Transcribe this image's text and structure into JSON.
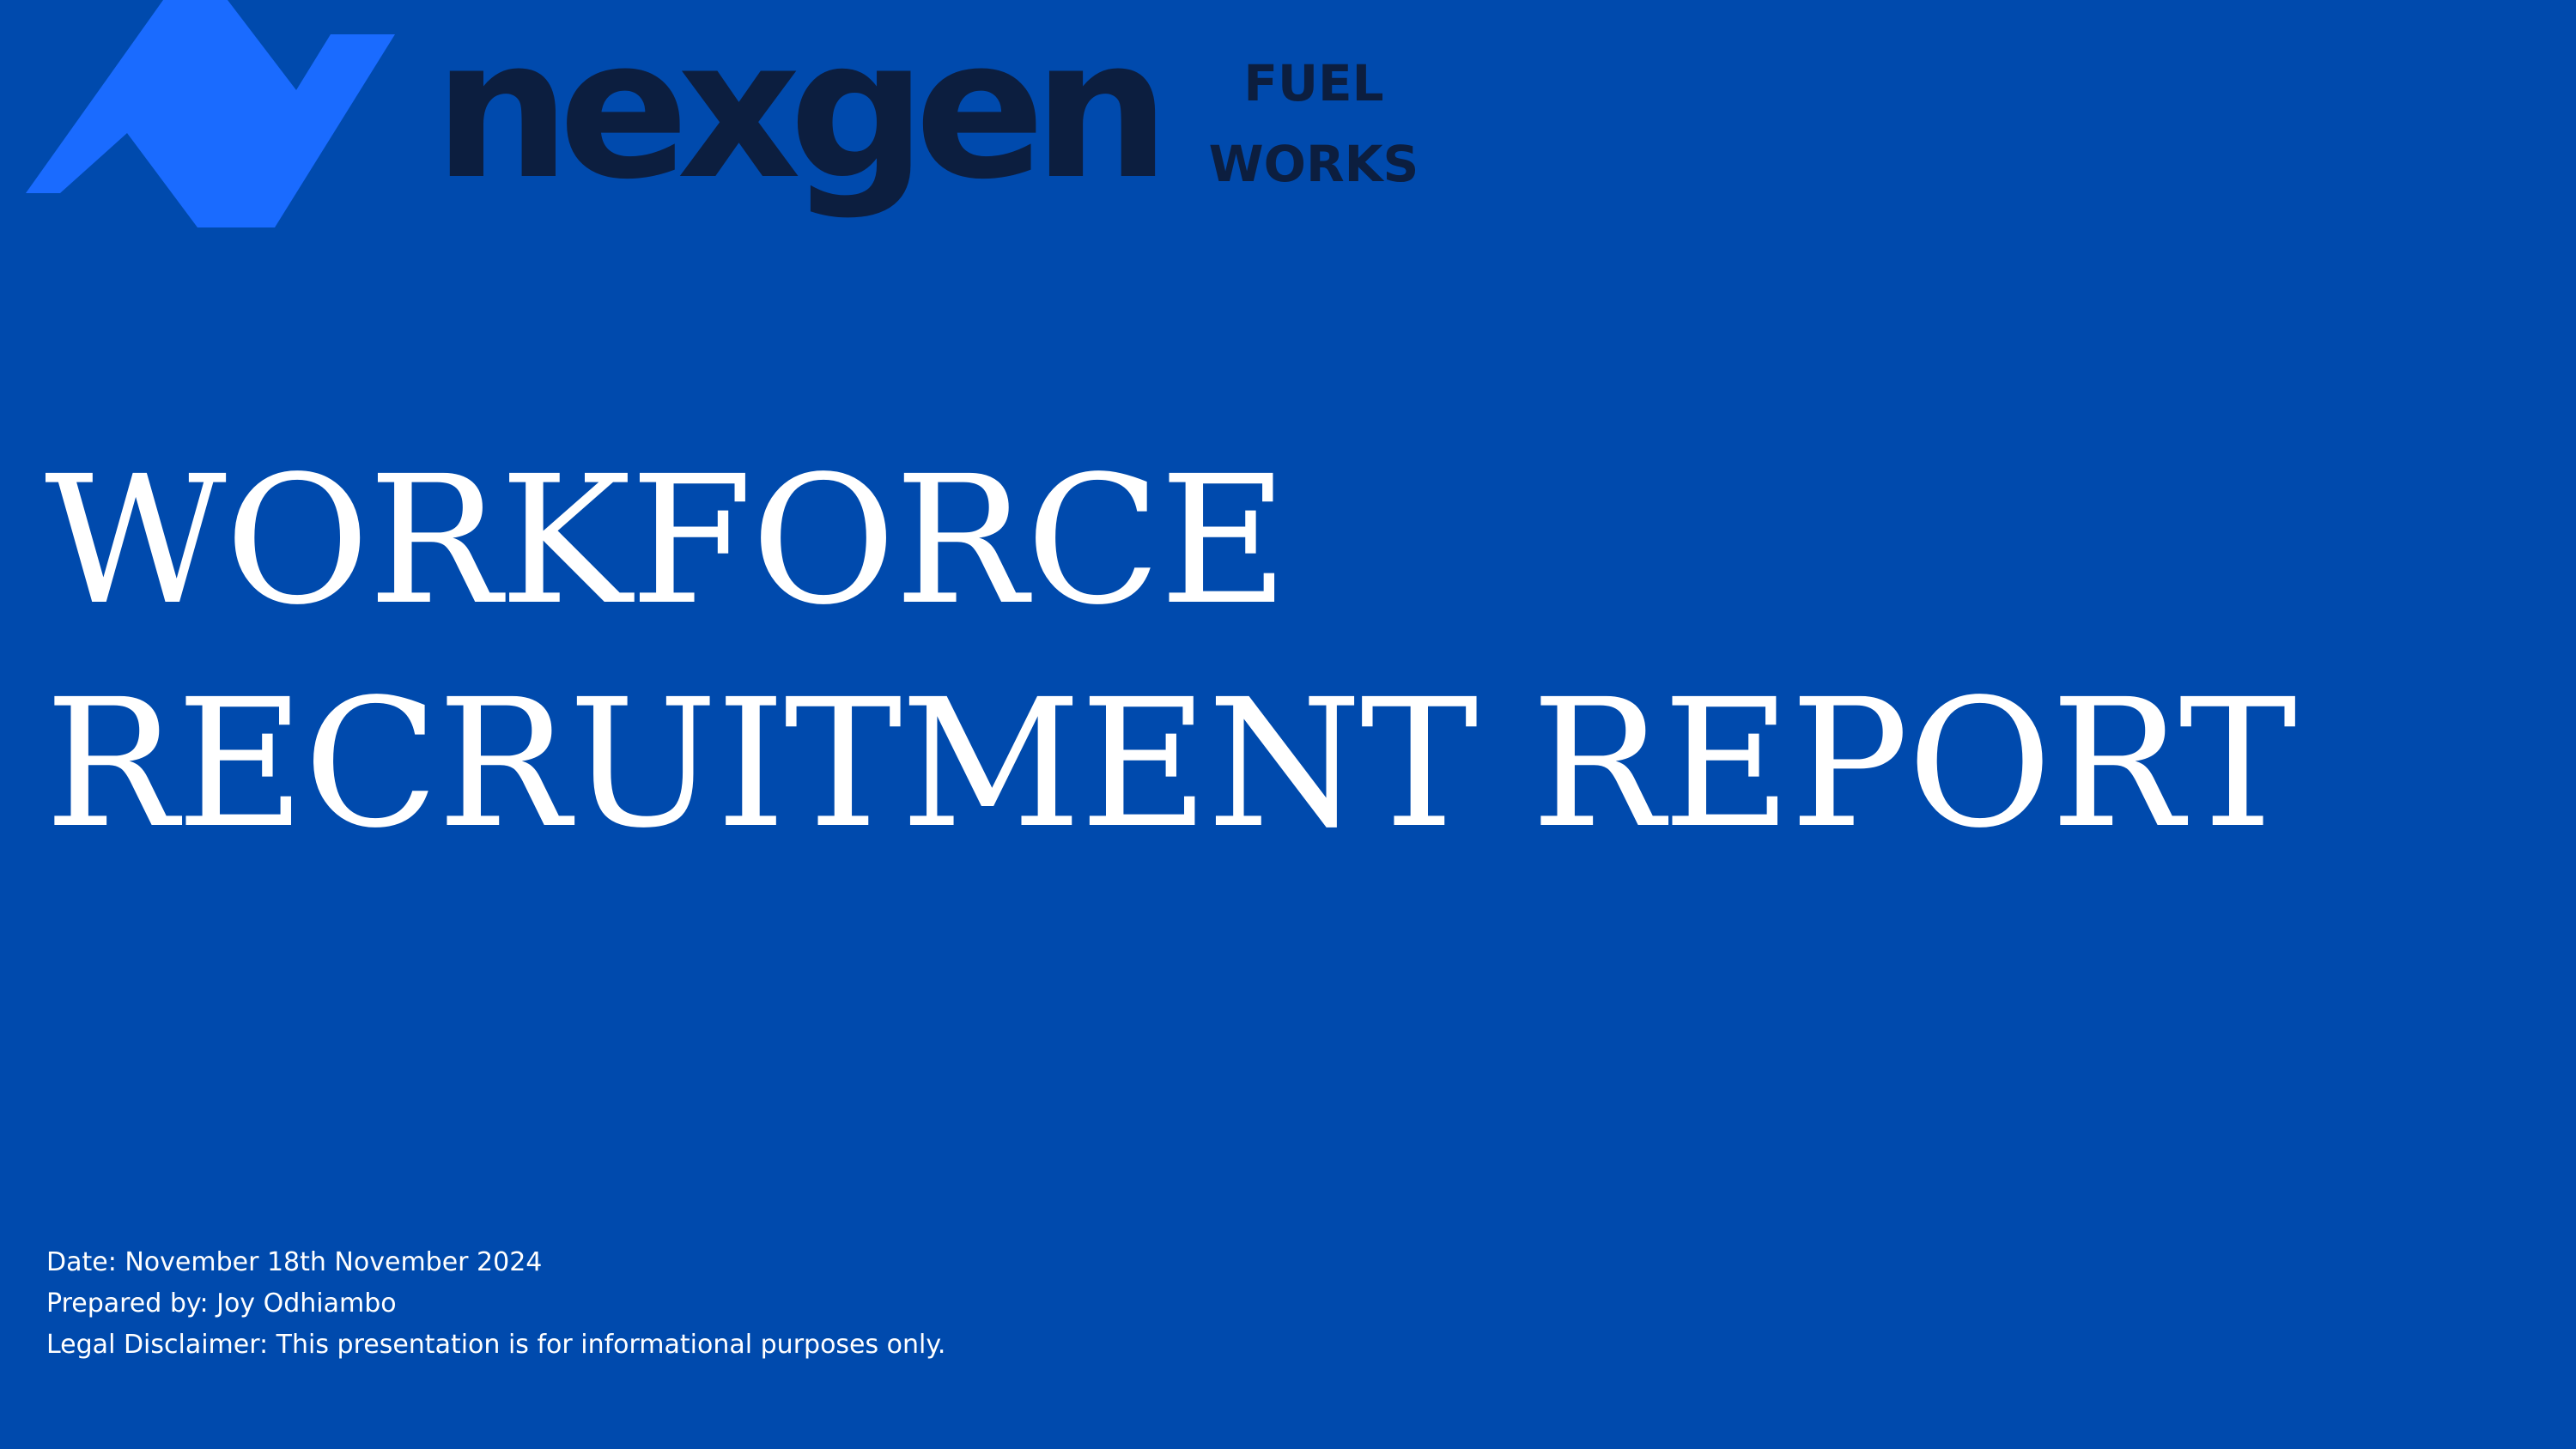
{
  "logo": {
    "icon": "nexgen-chevron-logo-icon",
    "name": "nexgen",
    "sub_line1": "FUEL",
    "sub_line2": "WORKS"
  },
  "title": {
    "line1": "WORKFORCE",
    "line2": "RECRUITMENT REPORT"
  },
  "meta": {
    "date": "Date: November 18th November  2024",
    "prepared_by": "Prepared by: Joy Odhiambo",
    "disclaimer": "Legal Disclaimer: This presentation is for informational purposes only."
  },
  "colors": {
    "background": "#004aad",
    "logo_mark": "#1a6bff",
    "logo_text": "#0c1e3f",
    "title_text": "#ffffff"
  }
}
